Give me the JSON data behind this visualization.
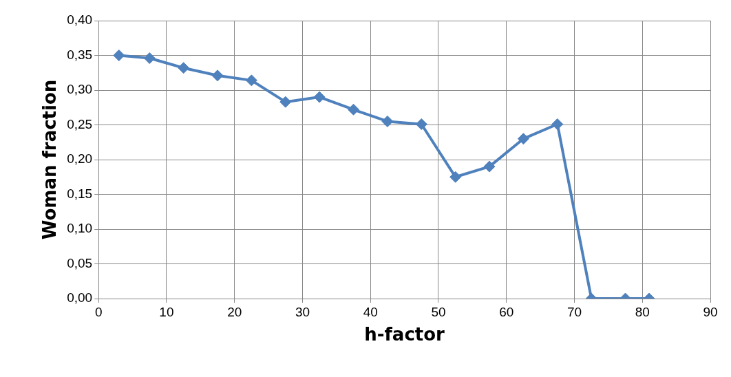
{
  "chart_data": {
    "type": "line",
    "xlabel": "h-factor",
    "ylabel": "Woman fraction",
    "x": [
      3,
      7.5,
      12.5,
      17.5,
      22.5,
      27.5,
      32.5,
      37.5,
      42.5,
      47.5,
      52.5,
      57.5,
      62.5,
      67.5,
      72.5,
      77.5,
      81
    ],
    "series": [
      {
        "color": "#4f81bd",
        "values": [
          0.35,
          0.346,
          0.332,
          0.321,
          0.314,
          0.283,
          0.29,
          0.272,
          0.255,
          0.251,
          0.175,
          0.19,
          0.23,
          0.251,
          0,
          0,
          0
        ]
      }
    ],
    "xlim": [
      0,
      90
    ],
    "xticks": [
      0,
      10,
      20,
      30,
      40,
      50,
      60,
      70,
      80,
      90
    ],
    "ylim": [
      0,
      0.4
    ],
    "yticks": [
      {
        "value": 0,
        "label": "0,00"
      },
      {
        "value": 0.05,
        "label": "0,05"
      },
      {
        "value": 0.1,
        "label": "0,10"
      },
      {
        "value": 0.15,
        "label": "0,15"
      },
      {
        "value": 0.2,
        "label": "0,20"
      },
      {
        "value": 0.25,
        "label": "0,25"
      },
      {
        "value": 0.3,
        "label": "0,30"
      },
      {
        "value": 0.35,
        "label": "0,35"
      },
      {
        "value": 0.4,
        "label": "0,40"
      }
    ],
    "grid": true,
    "legend": false,
    "marker": "diamond",
    "line_style": "solid"
  }
}
